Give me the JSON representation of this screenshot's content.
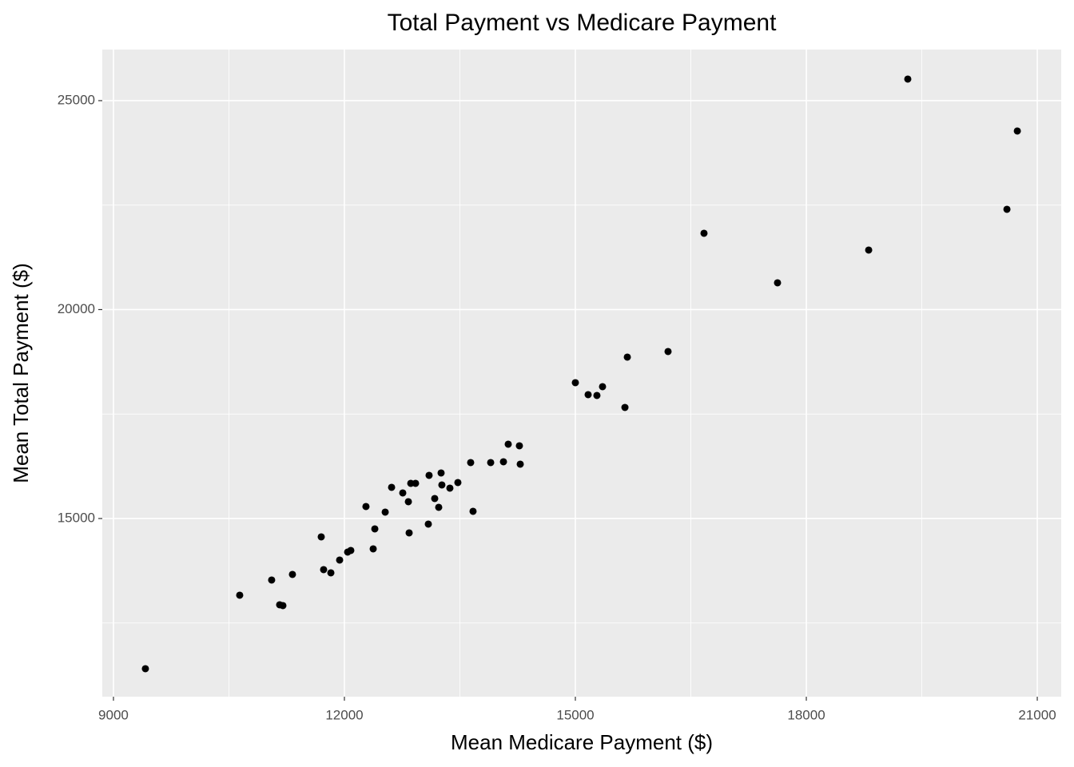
{
  "chart_data": {
    "type": "scatter",
    "title": "Total Payment vs Medicare Payment",
    "x_label": "Mean Medicare Payment ($)",
    "y_label": "Mean Total Payment ($)",
    "xlim": [
      8855,
      21311
    ],
    "ylim": [
      10736,
      26223
    ],
    "xticks": [
      9000,
      12000,
      15000,
      18000,
      21000
    ],
    "yticks": [
      15000,
      20000,
      25000
    ],
    "xminor": [
      10500,
      13500,
      16500,
      19500
    ],
    "yminor": [
      12500,
      17500,
      22500
    ],
    "grid": true,
    "background": "#ebebeb",
    "color": "#000000",
    "series": [
      {
        "x": [
          9415,
          10640,
          11055,
          11325,
          11159,
          11201,
          11699,
          11730,
          11824,
          11938,
          12042,
          12083,
          12280,
          12374,
          12395,
          12530,
          12613,
          12758,
          12831,
          12841,
          12862,
          12924,
          13090,
          13100,
          13173,
          13225,
          13256,
          13266,
          13370,
          13474,
          13640,
          13671,
          13900,
          14066,
          14128,
          14273,
          14284,
          15000,
          15166,
          15280,
          15353,
          15644,
          15675,
          16204,
          16671,
          17626,
          18810,
          19318,
          20606,
          20741
        ],
        "values": [
          11406,
          13165,
          13528,
          13662,
          12935,
          12916,
          14561,
          13777,
          13700,
          14006,
          14197,
          14236,
          15287,
          14274,
          14752,
          15153,
          15746,
          15612,
          15402,
          14656,
          15842,
          15842,
          14866,
          16033,
          15478,
          15268,
          16090,
          15803,
          15727,
          15861,
          16339,
          15172,
          16339,
          16358,
          16779,
          16740,
          16300,
          18251,
          17964,
          17945,
          18155,
          17658,
          18863,
          18996,
          21826,
          20641,
          21425,
          25516,
          22400,
          24273
        ]
      }
    ]
  }
}
